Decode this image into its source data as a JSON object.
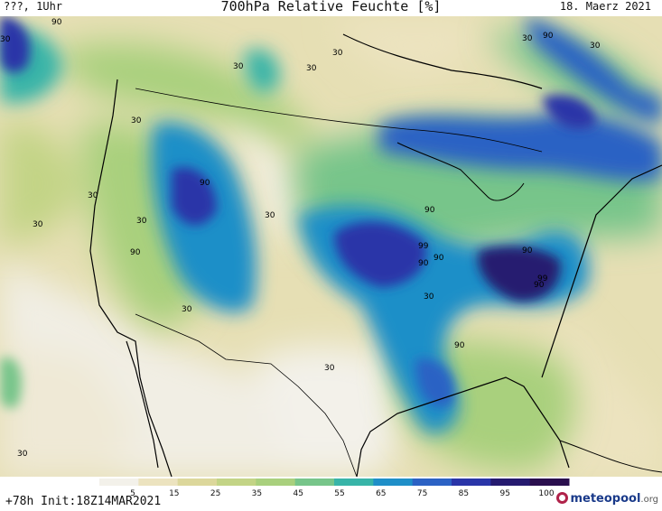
{
  "header": {
    "left": "???, 1Uhr",
    "title": "700hPa Relative Feuchte [%]",
    "date": "18. Maerz 2021"
  },
  "footer": {
    "run_info": "+78h Init:18Z14MAR2021",
    "logo_brand": "meteopool",
    "logo_tld": ".org"
  },
  "legend": {
    "ticks": [
      "5",
      "15",
      "25",
      "35",
      "45",
      "55",
      "65",
      "75",
      "85",
      "95",
      "100"
    ],
    "colors": [
      "#f3f1ea",
      "#ece3bf",
      "#dcd79b",
      "#c3d486",
      "#a9d07d",
      "#77c58a",
      "#38b4a8",
      "#1f8fc8",
      "#2c62c4",
      "#2a35a8",
      "#251a6f",
      "#2a0f4e"
    ]
  },
  "contour_labels": {
    "values": [
      "90",
      "30",
      "30",
      "30",
      "30",
      "30",
      "90",
      "30",
      "30",
      "30",
      "30",
      "30",
      "90",
      "30",
      "90",
      "90",
      "99",
      "90",
      "90",
      "99",
      "90",
      "90",
      "30",
      "90",
      "30",
      "30",
      "30",
      "30"
    ]
  }
}
